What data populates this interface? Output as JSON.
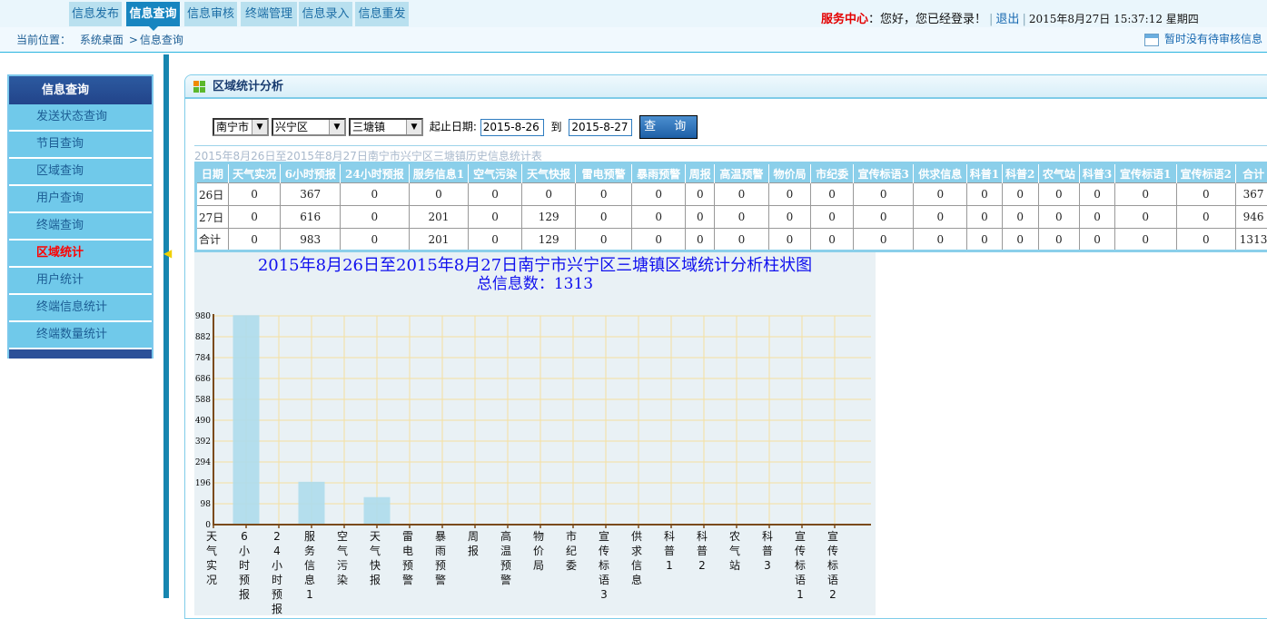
{
  "nav": {
    "tabs": [
      {
        "label": "信息发布"
      },
      {
        "label": "信息查询",
        "active": true
      },
      {
        "label": "信息审核"
      },
      {
        "label": "终端管理"
      },
      {
        "label": "信息录入"
      },
      {
        "label": "信息重发"
      }
    ]
  },
  "breadcrumb": {
    "label": "当前位置：",
    "items": [
      "系统桌面",
      ">",
      "信息查询"
    ]
  },
  "user": {
    "service": "服务中心",
    "greeting": "：您好，您已经登录！",
    "logout": "退出",
    "datetime": "2015年8月27日  15:37:12  星期四"
  },
  "pending": {
    "text": "暂时没有待审核信息",
    "icon": "edit-note-icon"
  },
  "sidebar": {
    "title": "信息查询",
    "items": [
      {
        "label": "发送状态查询"
      },
      {
        "label": "节目查询"
      },
      {
        "label": "区域查询"
      },
      {
        "label": "用户查询"
      },
      {
        "label": "终端查询"
      },
      {
        "label": "区域统计",
        "active": true
      },
      {
        "label": "用户统计"
      },
      {
        "label": "终端信息统计"
      },
      {
        "label": "终端数量统计"
      }
    ]
  },
  "panel": {
    "title": "区域统计分析"
  },
  "filters": {
    "city": "南宁市",
    "district": "兴宁区",
    "town": "三塘镇",
    "date_label": "起止日期:",
    "start": "2015-8-26",
    "to": "到",
    "end": "2015-8-27",
    "query": "查 询"
  },
  "table": {
    "caption": "2015年8月26日至2015年8月27日南宁市兴宁区三塘镇历史信息统计表",
    "headers": [
      "日期",
      "天气实况",
      "6小时预报",
      "24小时预报",
      "服务信息1",
      "空气污染",
      "天气快报",
      "雷电预警",
      "暴雨预警",
      "周报",
      "高温预警",
      "物价局",
      "市纪委",
      "宣传标语3",
      "供求信息",
      "科普1",
      "科普2",
      "农气站",
      "科普3",
      "宣传标语1",
      "宣传标语2",
      "合计"
    ],
    "rows": [
      [
        "26日",
        "0",
        "367",
        "0",
        "0",
        "0",
        "0",
        "0",
        "0",
        "0",
        "0",
        "0",
        "0",
        "0",
        "0",
        "0",
        "0",
        "0",
        "0",
        "0",
        "0",
        "367"
      ],
      [
        "27日",
        "0",
        "616",
        "0",
        "201",
        "0",
        "129",
        "0",
        "0",
        "0",
        "0",
        "0",
        "0",
        "0",
        "0",
        "0",
        "0",
        "0",
        "0",
        "0",
        "0",
        "946"
      ],
      [
        "合计",
        "0",
        "983",
        "0",
        "201",
        "0",
        "129",
        "0",
        "0",
        "0",
        "0",
        "0",
        "0",
        "0",
        "0",
        "0",
        "0",
        "0",
        "0",
        "0",
        "0",
        "1313"
      ]
    ]
  },
  "chart_data": {
    "type": "bar",
    "title": "2015年8月26日至2015年8月27日南宁市兴宁区三塘镇区域统计分析柱状图",
    "subtitle": "总信息数：1313",
    "categories": [
      "天气实况",
      "6小时预报",
      "24小时预报",
      "服务信息1",
      "空气污染",
      "天气快报",
      "雷电预警",
      "暴雨预警",
      "周报",
      "高温预警",
      "物价局",
      "市纪委",
      "宣传标语3",
      "供求信息",
      "科普1",
      "科普2",
      "农气站",
      "科普3",
      "宣传标语1",
      "宣传标语2"
    ],
    "values": [
      0,
      983,
      0,
      201,
      0,
      129,
      0,
      0,
      0,
      0,
      0,
      0,
      0,
      0,
      0,
      0,
      0,
      0,
      0,
      0
    ],
    "yticks": [
      0,
      98,
      196,
      294,
      392,
      490,
      588,
      686,
      784,
      882,
      980
    ],
    "ylim": [
      0,
      980
    ],
    "grid": true,
    "colors": {
      "bar": "#aedcec",
      "grid": "#f5dfa0",
      "axis": "#7a4a1a",
      "title": "#1010ee"
    }
  }
}
